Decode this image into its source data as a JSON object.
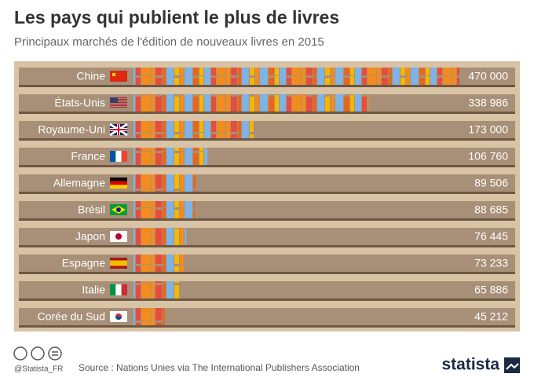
{
  "chart_data": {
    "type": "bar",
    "title": "Les pays qui publient le plus de livres",
    "subtitle": "Principaux marchés de l'édition de nouveaux livres en 2015",
    "categories": [
      "Chine",
      "États-Unis",
      "Royaume-Uni",
      "France",
      "Allemagne",
      "Brésil",
      "Japon",
      "Espagne",
      "Italie",
      "Corée du Sud"
    ],
    "values": [
      470000,
      338986,
      173000,
      106760,
      89506,
      88685,
      76445,
      73233,
      65886,
      45212
    ],
    "value_labels": [
      "470 000",
      "338 986",
      "173 000",
      "106 760",
      "89 506",
      "88 685",
      "76 445",
      "73 233",
      "65 886",
      "45 212"
    ],
    "colors": [
      "#f28c1e",
      "#e8661b",
      "#7fb2e5",
      "#f5b700",
      "#e74c3c"
    ]
  },
  "footer": {
    "handle": "@Statista_FR",
    "source": "Source : Nations Unies via The International Publishers Association",
    "logo": "statista"
  }
}
